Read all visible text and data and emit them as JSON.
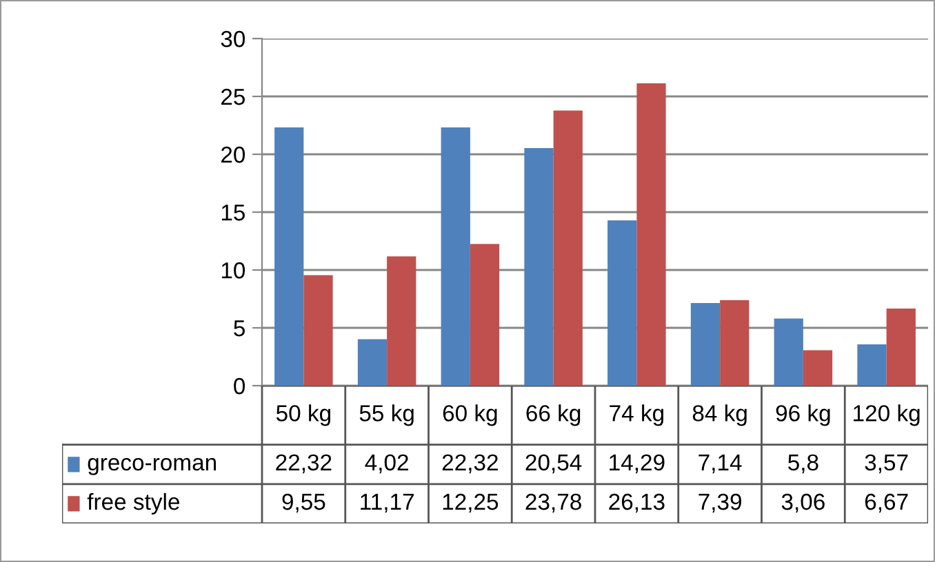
{
  "chart_data": {
    "type": "bar",
    "categories": [
      "50 kg",
      "55 kg",
      "60 kg",
      "66 kg",
      "74 kg",
      "84 kg",
      "96 kg",
      "120 kg"
    ],
    "series": [
      {
        "name": "greco-roman",
        "color": "#4f81bd",
        "values": [
          22.32,
          4.02,
          22.32,
          20.54,
          14.29,
          7.14,
          5.8,
          3.57
        ],
        "value_labels": [
          "22,32",
          "4,02",
          "22,32",
          "20,54",
          "14,29",
          "7,14",
          "5,8",
          "3,57"
        ]
      },
      {
        "name": "free style",
        "color": "#c0504d",
        "values": [
          9.55,
          11.17,
          12.25,
          23.78,
          26.13,
          7.39,
          3.06,
          6.67
        ],
        "value_labels": [
          "9,55",
          "11,17",
          "12,25",
          "23,78",
          "26,13",
          "7,39",
          "3,06",
          "6,67"
        ]
      }
    ],
    "ylim": [
      0,
      30
    ],
    "yticks": [
      0,
      5,
      10,
      15,
      20,
      25,
      30
    ],
    "grid": "y",
    "legend": "bottom"
  }
}
